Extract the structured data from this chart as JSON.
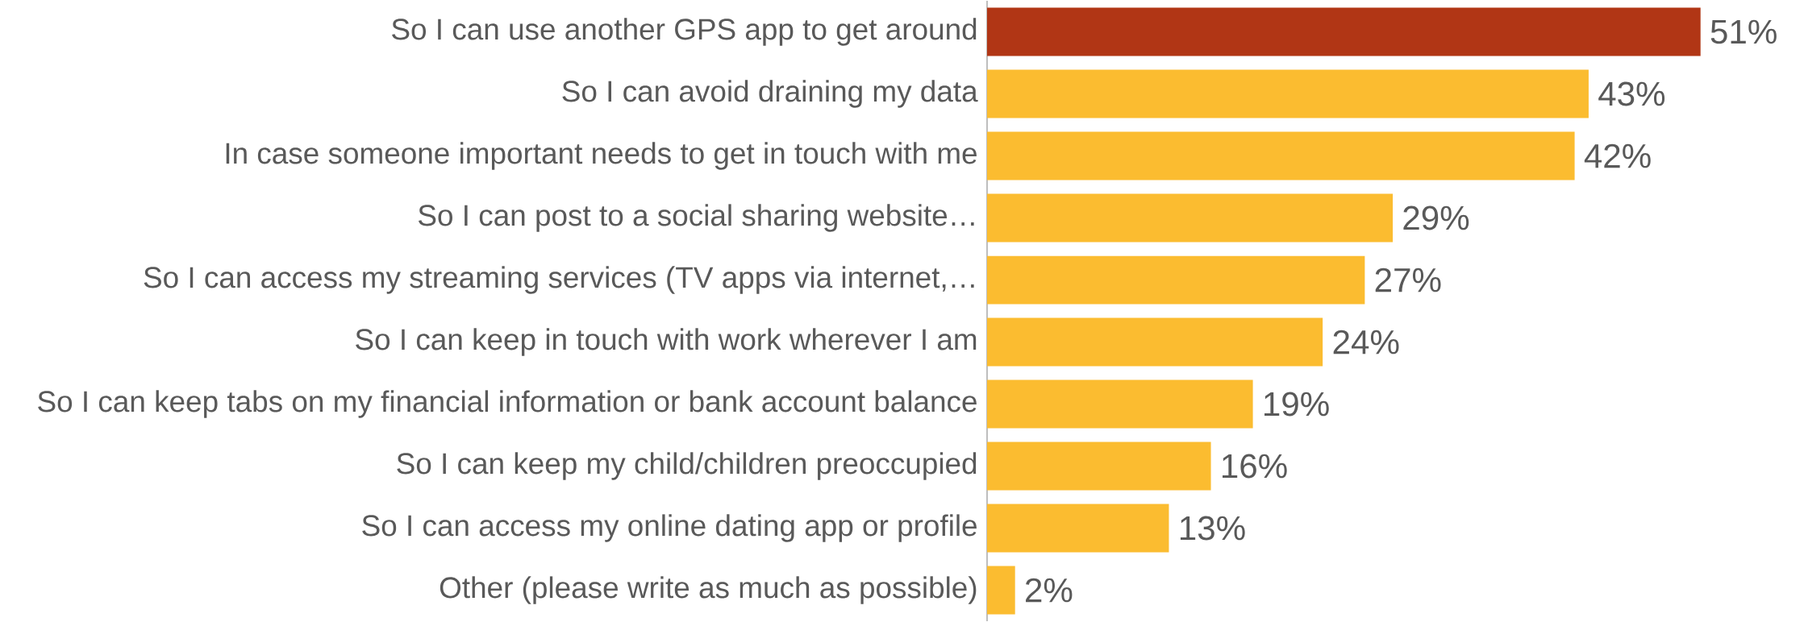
{
  "chart_data": {
    "type": "bar",
    "orientation": "horizontal",
    "categories": [
      "So I can use another GPS app to get around",
      "So I can avoid draining my data",
      "In case someone important needs to get in touch with me",
      "So I can post to a social sharing website…",
      "So I can access my streaming services (TV apps via internet,…",
      "So I can keep in touch with work wherever I am",
      "So I can keep tabs on my financial information or bank account balance",
      "So I can keep my child/children preoccupied",
      "So I can access my online dating app or profile",
      "Other (please write as much as possible)"
    ],
    "values": [
      51,
      43,
      42,
      29,
      27,
      24,
      19,
      16,
      13,
      2
    ],
    "value_labels": [
      "51%",
      "43%",
      "42%",
      "29%",
      "27%",
      "24%",
      "19%",
      "16%",
      "13%",
      "2%"
    ],
    "colors": [
      "#b13615",
      "#fbbc30",
      "#fbbc30",
      "#fbbc30",
      "#fbbc30",
      "#fbbc30",
      "#fbbc30",
      "#fbbc30",
      "#fbbc30",
      "#fbbc30"
    ],
    "data_labels": false
  }
}
